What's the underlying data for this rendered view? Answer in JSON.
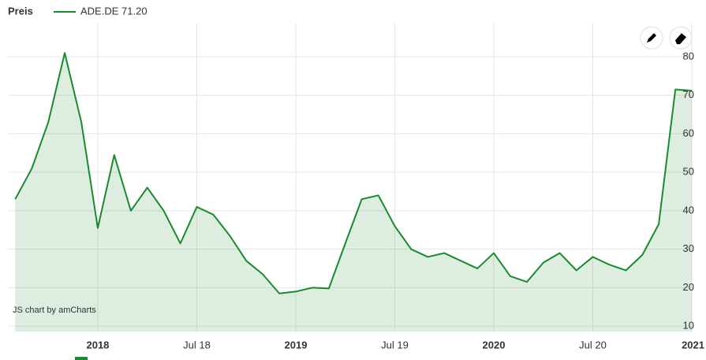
{
  "chart_data": {
    "type": "area",
    "legend_title": "Preis",
    "credit": "JS chart by amCharts",
    "x": [
      2017.583,
      2017.667,
      2017.75,
      2017.833,
      2017.917,
      2018.0,
      2018.083,
      2018.167,
      2018.25,
      2018.333,
      2018.417,
      2018.5,
      2018.583,
      2018.667,
      2018.75,
      2018.833,
      2018.917,
      2019.0,
      2019.083,
      2019.167,
      2019.25,
      2019.333,
      2019.417,
      2019.5,
      2019.583,
      2019.667,
      2019.75,
      2019.833,
      2019.917,
      2020.0,
      2020.083,
      2020.167,
      2020.25,
      2020.333,
      2020.417,
      2020.5,
      2020.583,
      2020.667,
      2020.75,
      2020.833,
      2020.917,
      2021.0
    ],
    "series": [
      {
        "name": "ADE.DE 71.20",
        "color": "#1a8a2e",
        "values": [
          43,
          51,
          63,
          81,
          63,
          35.5,
          54.5,
          40,
          46,
          40,
          31.5,
          41,
          39,
          33.5,
          27,
          23.5,
          18.5,
          19,
          20,
          19.8,
          31.5,
          43,
          44,
          36,
          30,
          28,
          29,
          27,
          25,
          29,
          23,
          21.5,
          26.5,
          29,
          24.5,
          28,
          26,
          24.5,
          28.5,
          36.5,
          71.5,
          71.2
        ]
      }
    ],
    "xlim": [
      2017.546,
      2021.004
    ],
    "xticks": [
      2018,
      {
        "value": 2018.5,
        "label": "Jul 18"
      },
      2019,
      {
        "value": 2019.5,
        "label": "Jul 19"
      },
      2020,
      {
        "value": 2020.5,
        "label": "Jul 20"
      },
      2021
    ],
    "ylim": [
      8.6,
      88.6
    ],
    "yticks": [
      10,
      20,
      30,
      40,
      50,
      60,
      70,
      80
    ],
    "grid": true
  }
}
